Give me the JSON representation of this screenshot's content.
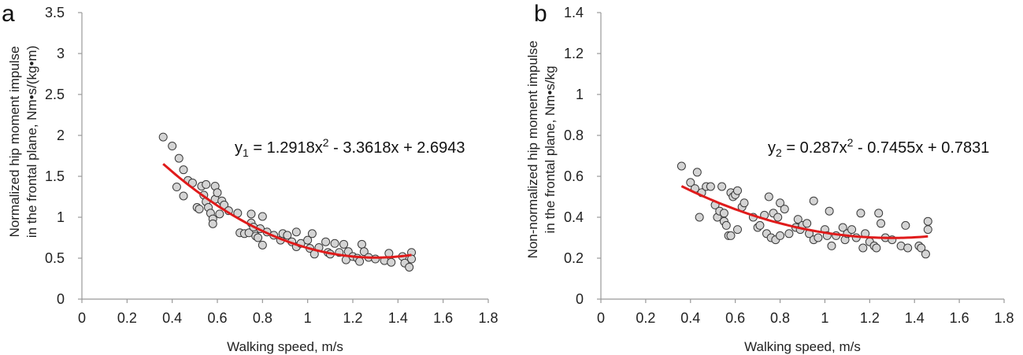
{
  "chart_data": [
    {
      "type": "scatter",
      "panel_label": "a",
      "xlabel": "Walking speed, m/s",
      "ylabel_line1": "Normalized hip moment impulse",
      "ylabel_line2": "in the frontal plane, Nm•s/(kg•m)",
      "xlim": [
        0,
        1.8
      ],
      "ylim": [
        0,
        3.5
      ],
      "xticks": [
        "0",
        "0.2",
        "0.4",
        "0.6",
        "0.8",
        "1",
        "1.2",
        "1.4",
        "1.6",
        "1.8"
      ],
      "yticks": [
        "0",
        "0.5",
        "1",
        "1.5",
        "2",
        "2.5",
        "3",
        "3.5"
      ],
      "equation": {
        "var": "y",
        "sub": "1",
        "a": "1.2918x",
        "sup": "2",
        "rest": " - 3.3618x + 2.6943"
      },
      "fit": {
        "coeffs": [
          1.2918,
          -3.3618,
          2.6943
        ],
        "x_range": [
          0.36,
          1.46
        ],
        "color": "#e01b1b"
      },
      "marker_fill": "#d4d4d4",
      "points": [
        [
          0.36,
          1.98
        ],
        [
          0.4,
          1.87
        ],
        [
          0.42,
          1.37
        ],
        [
          0.43,
          1.72
        ],
        [
          0.45,
          1.58
        ],
        [
          0.45,
          1.26
        ],
        [
          0.47,
          1.45
        ],
        [
          0.49,
          1.42
        ],
        [
          0.51,
          1.12
        ],
        [
          0.52,
          1.1
        ],
        [
          0.53,
          1.38
        ],
        [
          0.54,
          1.27
        ],
        [
          0.55,
          1.19
        ],
        [
          0.55,
          1.4
        ],
        [
          0.56,
          1.12
        ],
        [
          0.57,
          1.05
        ],
        [
          0.58,
          0.98
        ],
        [
          0.58,
          0.92
        ],
        [
          0.59,
          1.38
        ],
        [
          0.59,
          1.22
        ],
        [
          0.6,
          1.3
        ],
        [
          0.61,
          1.04
        ],
        [
          0.62,
          1.2
        ],
        [
          0.63,
          1.15
        ],
        [
          0.65,
          1.08
        ],
        [
          0.69,
          1.05
        ],
        [
          0.7,
          0.81
        ],
        [
          0.72,
          0.8
        ],
        [
          0.74,
          0.81
        ],
        [
          0.75,
          1.04
        ],
        [
          0.75,
          0.93
        ],
        [
          0.76,
          0.88
        ],
        [
          0.77,
          0.77
        ],
        [
          0.78,
          0.75
        ],
        [
          0.79,
          0.86
        ],
        [
          0.8,
          1.01
        ],
        [
          0.8,
          0.66
        ],
        [
          0.82,
          0.82
        ],
        [
          0.85,
          0.78
        ],
        [
          0.88,
          0.72
        ],
        [
          0.89,
          0.8
        ],
        [
          0.91,
          0.78
        ],
        [
          0.93,
          0.7
        ],
        [
          0.95,
          0.82
        ],
        [
          0.95,
          0.64
        ],
        [
          0.97,
          0.68
        ],
        [
          1.0,
          0.72
        ],
        [
          1.01,
          0.62
        ],
        [
          1.02,
          0.8
        ],
        [
          1.03,
          0.55
        ],
        [
          1.05,
          0.63
        ],
        [
          1.08,
          0.7
        ],
        [
          1.09,
          0.57
        ],
        [
          1.1,
          0.55
        ],
        [
          1.12,
          0.68
        ],
        [
          1.14,
          0.57
        ],
        [
          1.16,
          0.67
        ],
        [
          1.17,
          0.48
        ],
        [
          1.18,
          0.58
        ],
        [
          1.2,
          0.52
        ],
        [
          1.22,
          0.5
        ],
        [
          1.23,
          0.46
        ],
        [
          1.24,
          0.67
        ],
        [
          1.25,
          0.58
        ],
        [
          1.27,
          0.51
        ],
        [
          1.3,
          0.49
        ],
        [
          1.34,
          0.47
        ],
        [
          1.36,
          0.56
        ],
        [
          1.37,
          0.45
        ],
        [
          1.42,
          0.52
        ],
        [
          1.43,
          0.44
        ],
        [
          1.45,
          0.39
        ],
        [
          1.46,
          0.57
        ],
        [
          1.46,
          0.49
        ]
      ]
    },
    {
      "type": "scatter",
      "panel_label": "b",
      "xlabel": "Walking speed, m/s",
      "ylabel_line1": "Non-normalized hip moment impulse",
      "ylabel_line2": "in the frontal plane, Nm•s/kg",
      "xlim": [
        0,
        1.8
      ],
      "ylim": [
        0,
        1.4
      ],
      "xticks": [
        "0",
        "0.2",
        "0.4",
        "0.6",
        "0.8",
        "1",
        "1.2",
        "1.4",
        "1.6",
        "1.8"
      ],
      "yticks": [
        "0",
        "0.2",
        "0.4",
        "0.6",
        "0.8",
        "1",
        "1.2",
        "1.4"
      ],
      "equation": {
        "var": "y",
        "sub": "2",
        "a": "0.287x",
        "sup": "2",
        "rest": " - 0.7455x + 0.7831"
      },
      "fit": {
        "coeffs": [
          0.287,
          -0.7455,
          0.7831
        ],
        "x_range": [
          0.36,
          1.46
        ],
        "color": "#e01b1b"
      },
      "marker_fill": "#d4d4d4",
      "points": [
        [
          0.36,
          0.65
        ],
        [
          0.4,
          0.57
        ],
        [
          0.42,
          0.54
        ],
        [
          0.43,
          0.62
        ],
        [
          0.44,
          0.4
        ],
        [
          0.45,
          0.52
        ],
        [
          0.47,
          0.55
        ],
        [
          0.49,
          0.55
        ],
        [
          0.51,
          0.46
        ],
        [
          0.52,
          0.4
        ],
        [
          0.53,
          0.43
        ],
        [
          0.54,
          0.55
        ],
        [
          0.55,
          0.38
        ],
        [
          0.55,
          0.42
        ],
        [
          0.56,
          0.36
        ],
        [
          0.57,
          0.31
        ],
        [
          0.58,
          0.52
        ],
        [
          0.58,
          0.31
        ],
        [
          0.59,
          0.5
        ],
        [
          0.6,
          0.51
        ],
        [
          0.61,
          0.34
        ],
        [
          0.61,
          0.53
        ],
        [
          0.63,
          0.45
        ],
        [
          0.64,
          0.47
        ],
        [
          0.68,
          0.4
        ],
        [
          0.7,
          0.35
        ],
        [
          0.71,
          0.36
        ],
        [
          0.73,
          0.41
        ],
        [
          0.74,
          0.32
        ],
        [
          0.75,
          0.5
        ],
        [
          0.76,
          0.3
        ],
        [
          0.77,
          0.42
        ],
        [
          0.78,
          0.29
        ],
        [
          0.79,
          0.4
        ],
        [
          0.8,
          0.47
        ],
        [
          0.8,
          0.31
        ],
        [
          0.82,
          0.44
        ],
        [
          0.84,
          0.32
        ],
        [
          0.87,
          0.35
        ],
        [
          0.88,
          0.39
        ],
        [
          0.89,
          0.34
        ],
        [
          0.9,
          0.36
        ],
        [
          0.92,
          0.37
        ],
        [
          0.93,
          0.32
        ],
        [
          0.95,
          0.48
        ],
        [
          0.95,
          0.29
        ],
        [
          0.97,
          0.3
        ],
        [
          1.0,
          0.34
        ],
        [
          1.01,
          0.31
        ],
        [
          1.02,
          0.43
        ],
        [
          1.03,
          0.26
        ],
        [
          1.05,
          0.31
        ],
        [
          1.08,
          0.35
        ],
        [
          1.09,
          0.29
        ],
        [
          1.1,
          0.32
        ],
        [
          1.12,
          0.34
        ],
        [
          1.14,
          0.3
        ],
        [
          1.16,
          0.42
        ],
        [
          1.17,
          0.25
        ],
        [
          1.18,
          0.32
        ],
        [
          1.2,
          0.28
        ],
        [
          1.22,
          0.26
        ],
        [
          1.23,
          0.25
        ],
        [
          1.24,
          0.42
        ],
        [
          1.25,
          0.37
        ],
        [
          1.27,
          0.3
        ],
        [
          1.3,
          0.29
        ],
        [
          1.34,
          0.26
        ],
        [
          1.36,
          0.36
        ],
        [
          1.37,
          0.25
        ],
        [
          1.42,
          0.26
        ],
        [
          1.43,
          0.25
        ],
        [
          1.45,
          0.22
        ],
        [
          1.46,
          0.38
        ],
        [
          1.46,
          0.34
        ]
      ]
    }
  ]
}
